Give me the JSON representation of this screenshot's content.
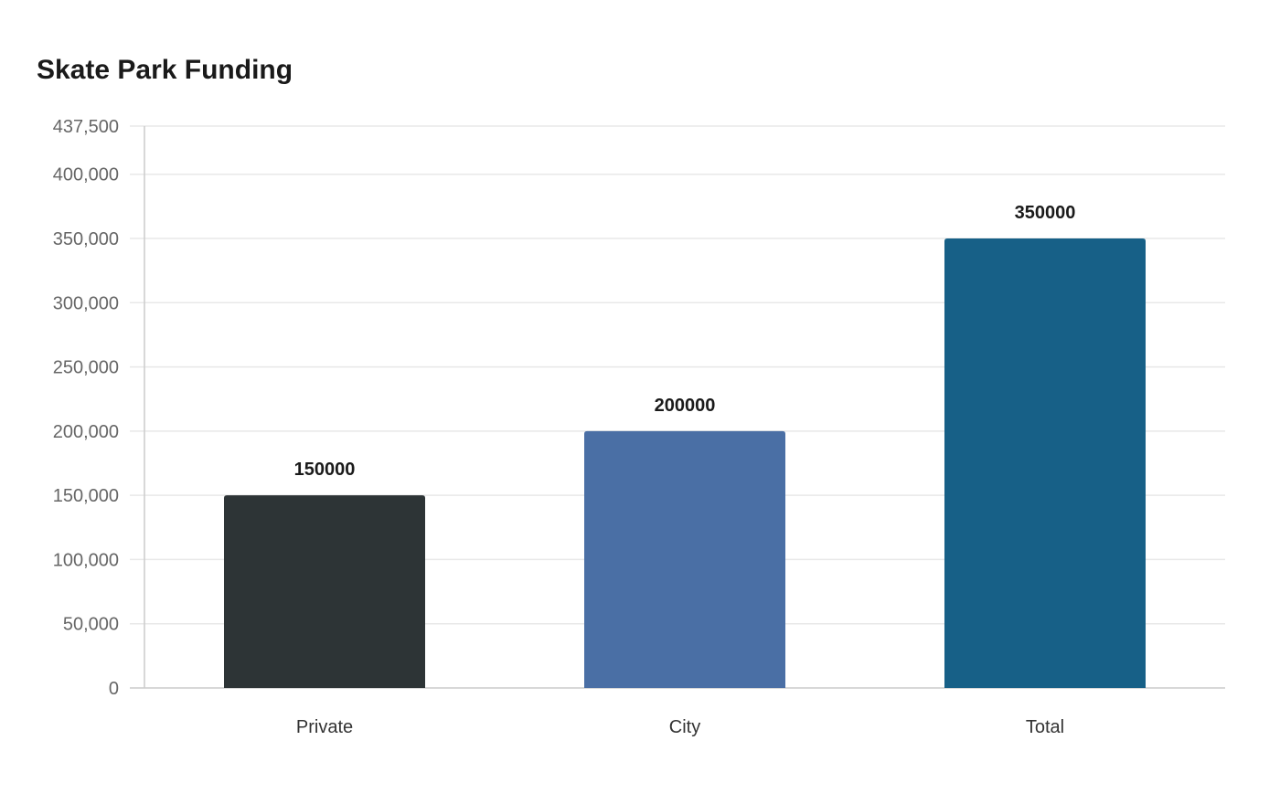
{
  "chart_data": {
    "type": "bar",
    "title": "Skate Park Funding",
    "categories": [
      "Private",
      "City",
      "Total"
    ],
    "values": [
      150000,
      200000,
      350000
    ],
    "data_labels": [
      "150000",
      "200000",
      "350000"
    ],
    "colors": [
      "#2d3436",
      "#4a6fa5",
      "#176087"
    ],
    "xlabel": "",
    "ylabel": "",
    "ylim": [
      0,
      437500
    ],
    "yticks": [
      0,
      50000,
      100000,
      150000,
      200000,
      250000,
      300000,
      350000,
      400000,
      437500
    ],
    "ytick_labels": [
      "0",
      "50,000",
      "100,000",
      "150,000",
      "200,000",
      "250,000",
      "300,000",
      "350,000",
      "400,000",
      "437,500"
    ],
    "grid": true,
    "legend": "none"
  }
}
